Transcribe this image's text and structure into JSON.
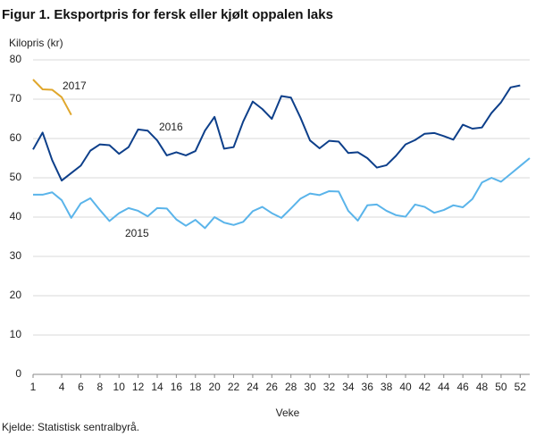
{
  "chart_data": {
    "type": "line",
    "title": "Figur 1. Eksportpris for fersk eller kjølt oppalen laks",
    "y_label": "Kilopris  (kr)",
    "x_label": "Veke",
    "source": "Kjelde: Statistisk sentralbyrå.",
    "x": [
      1,
      2,
      3,
      4,
      5,
      6,
      7,
      8,
      9,
      10,
      11,
      12,
      13,
      14,
      15,
      16,
      17,
      18,
      19,
      20,
      21,
      22,
      23,
      24,
      25,
      26,
      27,
      28,
      29,
      30,
      31,
      32,
      33,
      34,
      35,
      36,
      37,
      38,
      39,
      40,
      41,
      42,
      43,
      44,
      45,
      46,
      47,
      48,
      49,
      50,
      51,
      52,
      53
    ],
    "xlim": [
      1,
      53
    ],
    "xticks": [
      1,
      4,
      6,
      8,
      10,
      12,
      14,
      16,
      18,
      20,
      22,
      24,
      26,
      28,
      30,
      32,
      34,
      36,
      38,
      40,
      42,
      44,
      46,
      48,
      50,
      52
    ],
    "ylim": [
      0,
      80
    ],
    "yticks": [
      0,
      10,
      20,
      30,
      40,
      50,
      60,
      70,
      80
    ],
    "grid": true,
    "series": [
      {
        "name": "2015",
        "color": "#5ab4ea",
        "values": [
          45.7,
          45.7,
          46.3,
          44.3,
          39.8,
          43.5,
          44.8,
          41.8,
          39,
          41,
          42.3,
          41.6,
          40.2,
          42.3,
          42.2,
          39.4,
          37.8,
          39.3,
          37.2,
          40,
          38.6,
          38,
          38.8,
          41.5,
          42.6,
          41,
          39.8,
          42.2,
          44.7,
          46,
          45.6,
          46.6,
          46.5,
          41.6,
          39.1,
          43,
          43.2,
          41.6,
          40.5,
          40.1,
          43.2,
          42.6,
          41.1,
          41.8,
          43,
          42.5,
          44.6,
          48.8,
          50,
          49,
          51,
          53,
          55
        ]
      },
      {
        "name": "2016",
        "color": "#0d3f8a",
        "values": [
          57.2,
          61.5,
          54.5,
          49.3,
          51.2,
          53.1,
          56.9,
          58.5,
          58.3,
          56.1,
          57.8,
          62.3,
          62,
          59.5,
          55.7,
          56.5,
          55.7,
          56.8,
          62,
          65.5,
          57.4,
          57.8,
          64.3,
          69.4,
          67.5,
          65,
          70.8,
          70.4,
          65.3,
          59.5,
          57.5,
          59.4,
          59.2,
          56.3,
          56.5,
          55,
          52.6,
          53.2,
          55.6,
          58.5,
          59.6,
          61.2,
          61.4,
          60.6,
          59.7,
          63.5,
          62.5,
          62.8,
          66.5,
          69.2,
          73,
          73.5,
          null
        ]
      },
      {
        "name": "2017",
        "color": "#e0a72c",
        "values": [
          75,
          72.5,
          72.4,
          70.5,
          66,
          null,
          null,
          null,
          null,
          null,
          null,
          null,
          null,
          null,
          null,
          null,
          null,
          null,
          null,
          null,
          null,
          null,
          null,
          null,
          null,
          null,
          null,
          null,
          null,
          null,
          null,
          null,
          null,
          null,
          null,
          null,
          null,
          null,
          null,
          null,
          null,
          null,
          null,
          null,
          null,
          null,
          null,
          null,
          null,
          null,
          null,
          null,
          null
        ]
      }
    ]
  }
}
